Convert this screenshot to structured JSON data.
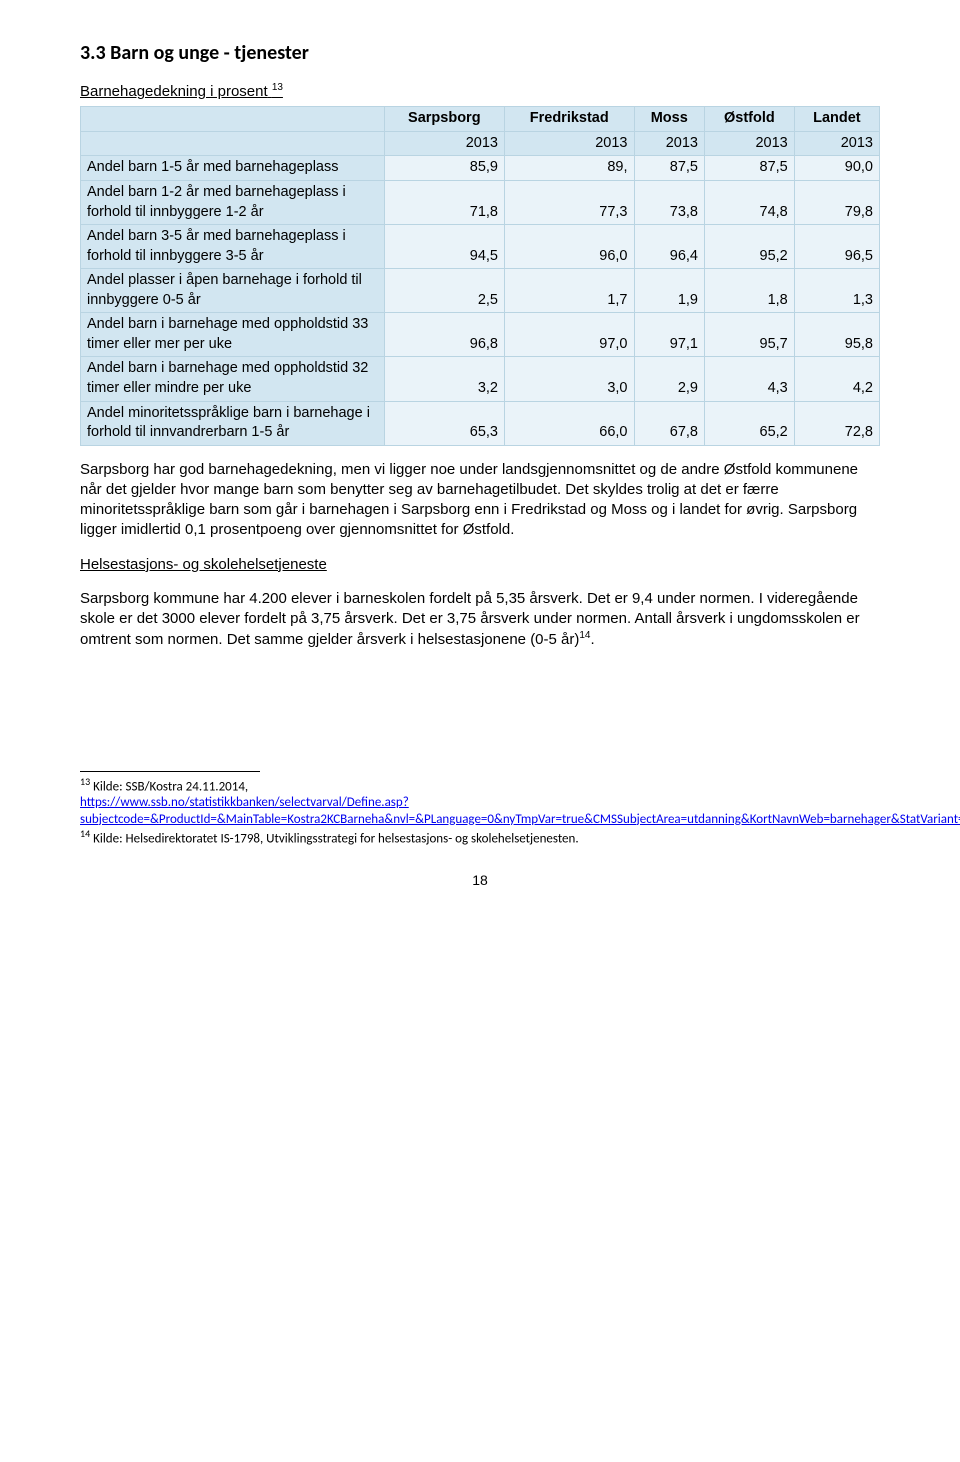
{
  "heading": "3.3 Barn og unge - tjenester",
  "table": {
    "title_text": "Barnehagedekning i prosent",
    "title_sup": "13",
    "header_cols": [
      "Sarpsborg",
      "Fredrikstad",
      "Moss",
      "Østfold",
      "Landet"
    ],
    "years": [
      "2013",
      "2013",
      "2013",
      "2013",
      "2013"
    ],
    "header_bg": "#d2e6f1",
    "cell_bg": "#eaf3f9",
    "border_color": "#b9d4e2",
    "rows": [
      {
        "label": "Andel barn 1-5 år med barnehageplass",
        "vals": [
          "85,9",
          "89,",
          "87,5",
          "87,5",
          "90,0"
        ]
      },
      {
        "label": "Andel barn 1-2 år med barnehageplass i forhold til innbyggere 1-2 år",
        "vals": [
          "71,8",
          "77,3",
          "73,8",
          "74,8",
          "79,8"
        ]
      },
      {
        "label": "Andel barn 3-5 år med barnehageplass i forhold til innbyggere 3-5 år",
        "vals": [
          "94,5",
          "96,0",
          "96,4",
          "95,2",
          "96,5"
        ]
      },
      {
        "label": "Andel plasser i åpen barnehage i forhold til innbyggere 0-5 år",
        "vals": [
          "2,5",
          "1,7",
          "1,9",
          "1,8",
          "1,3"
        ]
      },
      {
        "label": "Andel barn i barnehage med oppholdstid 33 timer eller mer per uke",
        "vals": [
          "96,8",
          "97,0",
          "97,1",
          "95,7",
          "95,8"
        ]
      },
      {
        "label": "Andel barn i barnehage med oppholdstid 32 timer eller mindre per uke",
        "vals": [
          "3,2",
          "3,0",
          "2,9",
          "4,3",
          "4,2"
        ]
      },
      {
        "label": "Andel minoritetsspråklige barn i barnehage i forhold til innvandrerbarn 1-5 år",
        "vals": [
          "65,3",
          "66,0",
          "67,8",
          "65,2",
          "72,8"
        ]
      }
    ]
  },
  "para1": "Sarpsborg har god barnehagedekning, men vi ligger noe under landsgjennomsnittet og de andre Østfold kommunene når det gjelder hvor mange barn som benytter seg av barnehagetilbudet. Det skyldes trolig at det er færre minoritetsspråklige barn som går i barnehagen i Sarpsborg enn i Fredrikstad og Moss og i landet for øvrig. Sarpsborg ligger imidlertid 0,1 prosentpoeng over gjennomsnittet for Østfold.",
  "subheading": "Helsestasjons- og skolehelsetjeneste",
  "para2_prefix": "Sarpsborg kommune har 4.200 elever i barneskolen fordelt på 5,35 årsverk. Det er 9,4 under normen. I videregående skole er det 3000 elever fordelt på 3,75 årsverk. Det er 3,75 årsverk under normen. Antall årsverk i ungdomsskolen er omtrent som normen. Det samme gjelder årsverk i helsestasjonene (0-5 år)",
  "para2_sup": "14",
  "para2_suffix": ".",
  "footnotes": {
    "fn13_sup": "13",
    "fn13_lead": " Kilde: SSB/Kostra 24.11.2014,",
    "fn13_link1": "https://www.ssb.no/statistikkbanken/selectvarval/Define.asp?subjectcode=&ProductId=&MainTable=Kostra2KCBarneha&nvl=&PLanguage=0&nyTmpVar=true&CMSSubjectArea=utdanning&KortNavnWeb=barnehager&StatVariant=&checked=true",
    "fn14_sup": "14",
    "fn14_text": " Kilde: Helsedirektoratet IS-1798, Utviklingsstrategi for helsestasjons- og skolehelsetjenesten."
  },
  "page_number": "18"
}
